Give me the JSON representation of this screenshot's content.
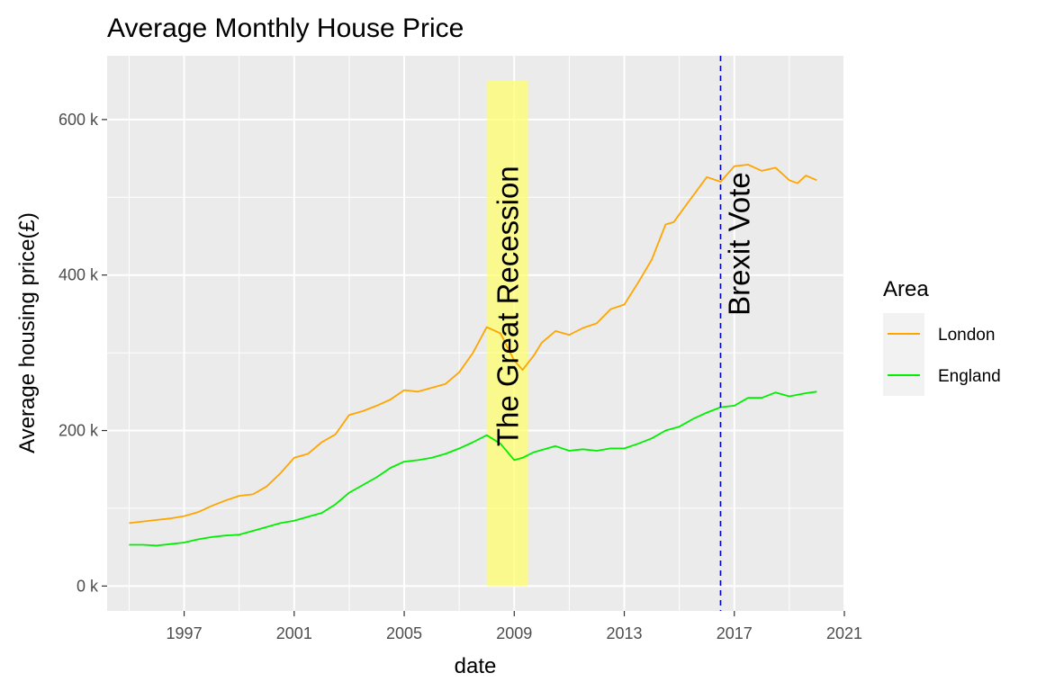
{
  "chart_data": {
    "type": "line",
    "title": "Average Monthly House Price",
    "xlabel": "date",
    "ylabel": "Average housing price(£)",
    "x_ticks": [
      "1997",
      "2001",
      "2005",
      "2009",
      "2013",
      "2017",
      "2021"
    ],
    "y_ticks": [
      "0 k",
      "200 k",
      "400 k",
      "600 k"
    ],
    "xlim": [
      1994.2,
      2021.0
    ],
    "ylim": [
      -32,
      682
    ],
    "grid": true,
    "legend": {
      "title": "Area",
      "position": "right",
      "entries": [
        "London",
        "England"
      ]
    },
    "series": [
      {
        "name": "London",
        "color": "#FFA500",
        "x": [
          1995.0,
          1995.5,
          1996.0,
          1996.5,
          1997.0,
          1997.5,
          1998.0,
          1998.5,
          1999.0,
          1999.5,
          2000.0,
          2000.5,
          2001.0,
          2001.5,
          2002.0,
          2002.5,
          2003.0,
          2003.5,
          2004.0,
          2004.5,
          2005.0,
          2005.5,
          2006.0,
          2006.5,
          2007.0,
          2007.5,
          2008.0,
          2008.5,
          2009.0,
          2009.3,
          2009.7,
          2010.0,
          2010.5,
          2011.0,
          2011.5,
          2012.0,
          2012.5,
          2013.0,
          2013.5,
          2014.0,
          2014.5,
          2014.8,
          2015.0,
          2015.5,
          2016.0,
          2016.5,
          2017.0,
          2017.5,
          2018.0,
          2018.5,
          2019.0,
          2019.3,
          2019.6,
          2020.0
        ],
        "values": [
          81,
          83,
          85,
          87,
          90,
          95,
          103,
          110,
          116,
          118,
          128,
          145,
          165,
          170,
          185,
          195,
          220,
          225,
          232,
          240,
          252,
          250,
          255,
          260,
          275,
          300,
          333,
          325,
          290,
          278,
          296,
          313,
          328,
          323,
          332,
          338,
          356,
          362,
          390,
          420,
          465,
          468,
          478,
          502,
          526,
          520,
          540,
          542,
          534,
          538,
          522,
          518,
          528,
          522
        ]
      },
      {
        "name": "England",
        "color": "#00EE00",
        "x": [
          1995.0,
          1995.5,
          1996.0,
          1996.5,
          1997.0,
          1997.5,
          1998.0,
          1998.5,
          1999.0,
          1999.5,
          2000.0,
          2000.5,
          2001.0,
          2001.5,
          2002.0,
          2002.5,
          2003.0,
          2003.5,
          2004.0,
          2004.5,
          2005.0,
          2005.5,
          2006.0,
          2006.5,
          2007.0,
          2007.5,
          2008.0,
          2008.5,
          2009.0,
          2009.3,
          2009.7,
          2010.0,
          2010.5,
          2011.0,
          2011.5,
          2012.0,
          2012.5,
          2013.0,
          2013.5,
          2014.0,
          2014.5,
          2015.0,
          2015.5,
          2016.0,
          2016.5,
          2017.0,
          2017.5,
          2018.0,
          2018.5,
          2019.0,
          2019.3,
          2019.6,
          2020.0
        ],
        "values": [
          53,
          53,
          52,
          54,
          56,
          60,
          63,
          65,
          66,
          71,
          76,
          81,
          84,
          89,
          94,
          105,
          120,
          130,
          140,
          152,
          160,
          162,
          165,
          170,
          177,
          185,
          194,
          183,
          162,
          165,
          172,
          175,
          180,
          174,
          176,
          174,
          177,
          177,
          183,
          190,
          200,
          205,
          215,
          223,
          230,
          232,
          242,
          242,
          249,
          244,
          246,
          248,
          250
        ]
      }
    ],
    "annotations": [
      {
        "type": "band",
        "x_start": 2008.0,
        "x_end": 2009.5,
        "y_top": 650,
        "color": "#FFFF66",
        "label": "The Great Recession"
      },
      {
        "type": "vline",
        "x": 2016.5,
        "color": "#0000CC",
        "style": "dashed",
        "label": "Brexit Vote"
      }
    ]
  }
}
